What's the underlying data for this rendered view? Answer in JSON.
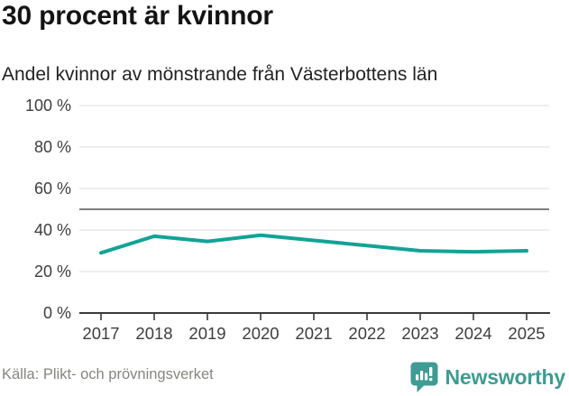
{
  "header": {
    "title": "30 procent är kvinnor",
    "subtitle": "Andel kvinnor av mönstrande från Västerbottens län"
  },
  "chart_data": {
    "type": "line",
    "title": "30 procent är kvinnor",
    "subtitle": "Andel kvinnor av mönstrande från Västerbottens län",
    "x": [
      "2017",
      "2018",
      "2019",
      "2020",
      "2021",
      "2022",
      "2023",
      "2024",
      "2025"
    ],
    "series": [
      {
        "name": "Andel kvinnor av mönstrande",
        "values": [
          29,
          37,
          34.5,
          37.5,
          35,
          32.5,
          30,
          29.5,
          30
        ]
      }
    ],
    "ylim": [
      0,
      100
    ],
    "y_ticks": [
      0,
      20,
      40,
      60,
      80,
      100
    ],
    "y_tick_labels": [
      "0 %",
      "20 %",
      "40 %",
      "60 %",
      "80 %",
      "100 %"
    ],
    "reference_line": 50,
    "grid": true,
    "legend": "none",
    "line_color": "#13a296",
    "reference_line_color": "#7f7f7f",
    "grid_color": "#e4e4e4",
    "axis_color": "#3a3a3a",
    "tick_label_color": "#3d3d3d"
  },
  "footer": {
    "source": "Källa: Plikt- och prövningsverket",
    "brand": "Newsworthy",
    "brand_color": "#3f9b93",
    "logo_icon": "speech-bubble-bar-chart"
  }
}
